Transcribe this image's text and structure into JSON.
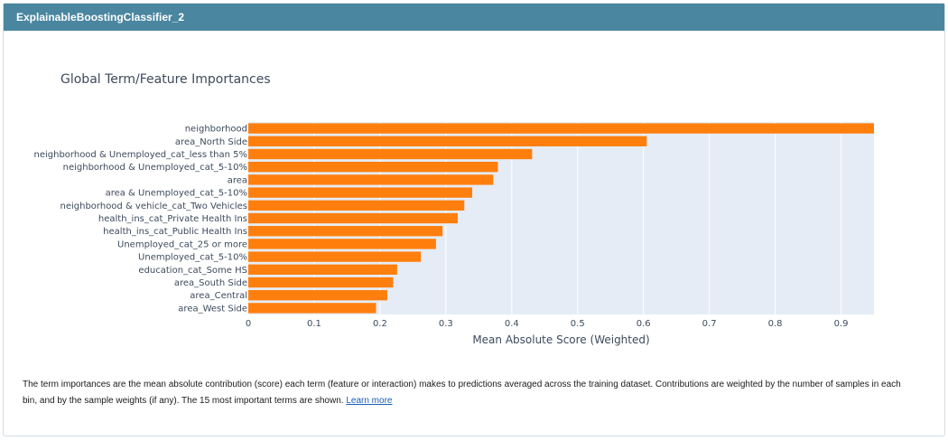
{
  "panel": {
    "title": "ExplainableBoostingClassifier_2"
  },
  "description": {
    "text": "The term importances are the mean absolute contribution (score) each term (feature or interaction) makes to predictions averaged across the training dataset. Contributions are weighted by the number of samples in each bin, and by the sample weights (if any). The 15 most important terms are shown.",
    "link_text": "Learn more"
  },
  "chart_data": {
    "type": "bar",
    "orientation": "horizontal",
    "title": "Global Term/Feature Importances",
    "xlabel": "Mean Absolute Score (Weighted)",
    "ylabel": "",
    "xlim": [
      0,
      0.95
    ],
    "xticks": [
      0,
      0.1,
      0.2,
      0.3,
      0.4,
      0.5,
      0.6,
      0.7,
      0.8,
      0.9
    ],
    "grid": true,
    "plot_background": "#e5ecf6",
    "bar_color": "#ff7f0e",
    "categories": [
      "neighborhood",
      "area_North Side",
      "neighborhood & Unemployed_cat_less than 5%",
      "neighborhood & Unemployed_cat_5-10%",
      "area",
      "area & Unemployed_cat_5-10%",
      "neighborhood & vehicle_cat_Two Vehicles",
      "health_ins_cat_Private Health Ins",
      "health_ins_cat_Public Health Ins",
      "Unemployed_cat_25 or more",
      "Unemployed_cat_5-10%",
      "education_cat_Some HS",
      "area_South Side",
      "area_Central",
      "area_West Side"
    ],
    "values": [
      0.95,
      0.605,
      0.431,
      0.379,
      0.372,
      0.34,
      0.328,
      0.318,
      0.295,
      0.285,
      0.262,
      0.226,
      0.22,
      0.211,
      0.194
    ]
  }
}
